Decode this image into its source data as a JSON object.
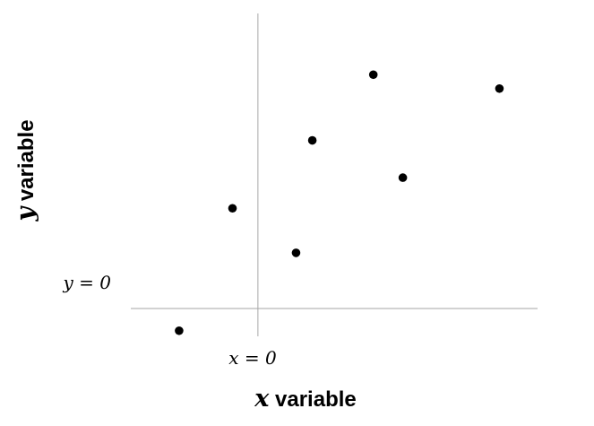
{
  "chart_data": {
    "type": "scatter",
    "title": "",
    "xlabel": {
      "var": "x",
      "text": " variable"
    },
    "ylabel": {
      "var": "y",
      "text": " variable"
    },
    "x_reference_label": "x = 0",
    "y_reference_label": "y = 0",
    "xlim": [
      -2.5,
      5.5
    ],
    "ylim": [
      -0.5,
      5.3
    ],
    "grid": false,
    "points": [
      {
        "x": -1.55,
        "y": -0.4
      },
      {
        "x": -0.5,
        "y": 1.8
      },
      {
        "x": 0.75,
        "y": 1.0
      },
      {
        "x": 1.07,
        "y": 3.02
      },
      {
        "x": 2.27,
        "y": 4.2
      },
      {
        "x": 2.85,
        "y": 2.35
      },
      {
        "x": 4.75,
        "y": 3.95
      }
    ],
    "colors": {
      "points": "#000000",
      "axes": "#a6a6a6"
    }
  }
}
